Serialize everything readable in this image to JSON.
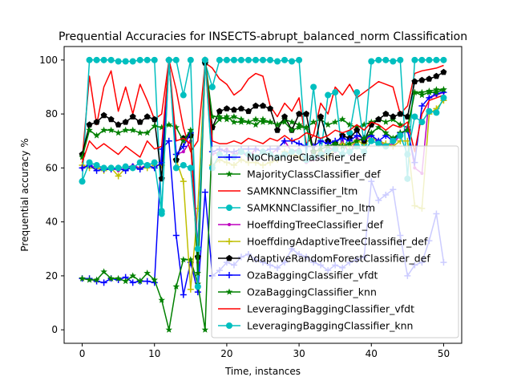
{
  "chart_data": {
    "type": "line",
    "title": "Prequential Accuracies for INSECTS-abrupt_balanced_norm Classification",
    "xlabel": "Time, instances",
    "ylabel": "Prequential accuracy %",
    "xlim": [
      -2.5,
      52.5
    ],
    "ylim": [
      -5,
      105
    ],
    "xticks": [
      0,
      10,
      20,
      30,
      40,
      50
    ],
    "yticks": [
      0,
      20,
      40,
      60,
      80,
      100
    ],
    "grid": false,
    "legend_position": "lower-right",
    "x": [
      0,
      1,
      2,
      3,
      4,
      5,
      6,
      7,
      8,
      9,
      10,
      11,
      12,
      13,
      14,
      15,
      16,
      17,
      18,
      19,
      20,
      21,
      22,
      23,
      24,
      25,
      26,
      27,
      28,
      29,
      30,
      31,
      32,
      33,
      34,
      35,
      36,
      37,
      38,
      39,
      40,
      41,
      42,
      43,
      44,
      45,
      46,
      47,
      48,
      49,
      50
    ],
    "series": [
      {
        "name": "NoChangeClassifier_def",
        "color": "#0000ff",
        "marker": "plus",
        "values": [
          19,
          19,
          18,
          17.5,
          19,
          18.5,
          19.5,
          17.5,
          18,
          18,
          17.5,
          67,
          70,
          35,
          13,
          25,
          14,
          51,
          20,
          22,
          25,
          24,
          27,
          28,
          26,
          25,
          24,
          23,
          25,
          30,
          28,
          27,
          25,
          24,
          22,
          24,
          23,
          25,
          26,
          27,
          55,
          48,
          50,
          52,
          35,
          20,
          24,
          25,
          33,
          43,
          25
        ]
      },
      {
        "name": "MajorityClassClassifier_def",
        "color": "#008000",
        "marker": "star",
        "values": [
          19,
          18.5,
          18.5,
          21.5,
          19,
          19,
          18,
          20,
          18,
          21,
          18.5,
          11,
          0,
          16,
          26,
          26,
          17,
          0,
          75,
          78,
          79,
          77,
          77,
          77,
          76,
          78,
          77,
          76,
          78,
          77,
          76,
          75,
          77,
          78,
          76,
          77,
          78,
          76,
          75,
          76,
          77,
          78,
          77,
          78,
          76,
          75,
          88,
          88,
          88.5,
          89,
          89
        ]
      },
      {
        "name": "SAMKNNClassifier_ltm",
        "color": "#ff0000",
        "marker": "none",
        "values": [
          63,
          94,
          76,
          90,
          96,
          81,
          90,
          80,
          91,
          85,
          78,
          80,
          100,
          89,
          75,
          66,
          70,
          99,
          97,
          93,
          91,
          87,
          89,
          93,
          95,
          94,
          83,
          79,
          84,
          81,
          86,
          69,
          72,
          84,
          80,
          90,
          87,
          91,
          86,
          88,
          90,
          92,
          91,
          90,
          80,
          83,
          95,
          96,
          96.5,
          97,
          98
        ]
      },
      {
        "name": "SAMKNNClassifier_no_ltm",
        "color": "#00bfbf",
        "marker": "circle",
        "values": [
          55,
          100,
          100,
          100,
          100,
          99.5,
          99.5,
          99.5,
          100,
          100,
          100,
          44,
          100,
          100,
          87,
          100,
          16,
          99,
          90,
          100,
          100,
          100,
          100,
          100,
          100,
          100,
          100,
          99.5,
          100,
          99.5,
          100,
          64,
          90,
          65,
          87,
          88,
          65,
          73,
          88,
          69,
          99.5,
          100,
          100,
          99.5,
          100,
          56,
          100,
          100,
          100,
          100,
          100
        ]
      },
      {
        "name": "HoeffdingTreeClassifier_def",
        "color": "#bf00bf",
        "marker": "dot",
        "values": [
          60,
          61,
          60,
          60,
          60,
          59,
          60,
          61,
          60,
          61,
          60,
          62,
          100,
          65,
          66,
          70,
          25,
          100,
          65,
          66,
          67,
          65,
          66,
          64,
          67,
          66,
          65,
          67,
          70,
          66,
          67,
          62,
          63,
          64,
          68,
          66,
          70,
          65,
          71,
          70,
          72,
          70,
          68,
          69,
          72,
          75,
          60,
          58,
          86,
          87,
          88
        ]
      },
      {
        "name": "HoeffdingAdaptiveTreeClassifier_def",
        "color": "#bfbf00",
        "marker": "plus",
        "values": [
          61,
          60,
          60,
          59,
          60,
          57,
          60,
          60,
          60,
          60,
          61,
          61,
          100,
          63,
          55,
          15,
          45,
          100,
          61,
          63,
          62,
          61,
          63,
          62,
          62,
          61,
          62,
          63,
          66,
          65,
          64,
          63,
          64,
          66,
          64,
          67,
          69,
          68,
          70,
          69,
          71,
          70,
          69,
          68,
          70,
          70,
          46,
          45,
          80,
          82,
          85
        ]
      },
      {
        "name": "AdaptiveRandomForestClassifier_def",
        "color": "#000000",
        "marker": "pentagon",
        "values": [
          65,
          76,
          77,
          79.5,
          78,
          76,
          77,
          79,
          77,
          79,
          78,
          56,
          100,
          63,
          71,
          72,
          27,
          99,
          75,
          81,
          82,
          81.5,
          82,
          81,
          83,
          83,
          82,
          74,
          79,
          74,
          80,
          80,
          66,
          79,
          70,
          69,
          72,
          71,
          74,
          70,
          76,
          78,
          80,
          79,
          80,
          79,
          92,
          92.5,
          93,
          94,
          95.5
        ]
      },
      {
        "name": "OzaBaggingClassifier_vfdt",
        "color": "#0000ff",
        "marker": "plus",
        "values": [
          60,
          61,
          59,
          59.5,
          59.5,
          60,
          59,
          60.5,
          59.5,
          61,
          60,
          62,
          100,
          65,
          68,
          73,
          30,
          100,
          66,
          67,
          66,
          66,
          67,
          67,
          67,
          66,
          67,
          67,
          70,
          70,
          69,
          68,
          68,
          70,
          69,
          70,
          71,
          70,
          72,
          71,
          72,
          70,
          72,
          70,
          73,
          74,
          62,
          83,
          86,
          87.5,
          88
        ]
      },
      {
        "name": "OzaBaggingClassifier_knn",
        "color": "#008000",
        "marker": "star",
        "values": [
          64,
          74,
          72,
          74,
          74,
          73,
          74,
          74,
          73,
          73,
          75.5,
          75,
          76,
          75,
          70,
          74,
          21,
          100,
          79,
          79,
          78,
          79,
          78,
          77,
          78,
          77,
          77,
          76,
          77,
          74,
          75,
          75,
          66,
          67,
          68,
          69,
          68,
          69,
          70,
          71,
          73,
          75,
          73,
          71,
          73,
          74,
          88,
          87,
          88,
          88,
          89
        ]
      },
      {
        "name": "LeveragingBaggingClassifier_vfdt",
        "color": "#ff0000",
        "marker": "none",
        "values": [
          62,
          70,
          67,
          69,
          67,
          65,
          68,
          66,
          64,
          70,
          67,
          68,
          100,
          70,
          71,
          69,
          29,
          100,
          70,
          69,
          69,
          70,
          69,
          71,
          70,
          69,
          71,
          70,
          72,
          70,
          71,
          73,
          72,
          71,
          72,
          74,
          73,
          74,
          76,
          74,
          77,
          76,
          74,
          76,
          75,
          77,
          66,
          80,
          85,
          86,
          87
        ]
      },
      {
        "name": "LeveragingBaggingClassifier_knn",
        "color": "#00bfbf",
        "marker": "circle",
        "values": [
          55,
          62,
          61,
          60,
          60,
          60,
          60.5,
          60,
          62,
          61,
          62,
          43,
          100,
          60,
          61,
          60,
          30,
          100,
          60,
          65,
          64,
          64,
          66,
          65,
          64,
          66,
          65,
          64,
          65,
          66,
          66,
          63,
          64,
          65,
          66,
          67,
          65,
          66,
          68,
          66,
          70,
          69,
          68,
          70,
          72,
          65,
          79,
          77,
          81,
          80.5,
          86
        ]
      }
    ]
  }
}
